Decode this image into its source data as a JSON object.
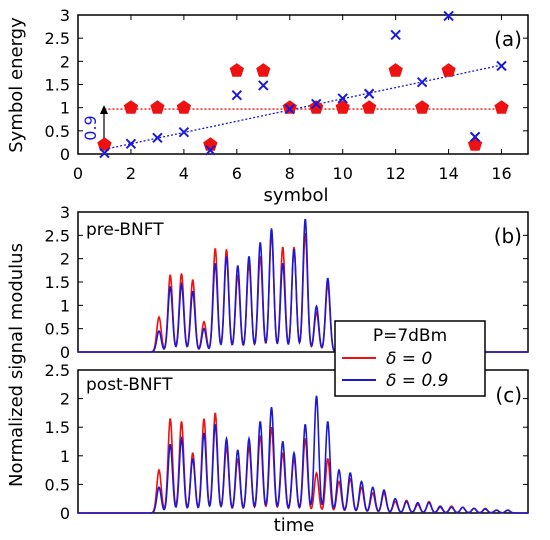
{
  "chart_data": [
    {
      "panel": "(a)",
      "type": "scatter",
      "xlabel": "symbol",
      "ylabel": "Symbol energy",
      "xlim": [
        0,
        17
      ],
      "ylim": [
        0,
        3
      ],
      "xticks": [
        "0",
        "2",
        "4",
        "6",
        "8",
        "10",
        "12",
        "14",
        "16"
      ],
      "yticks": [
        "0",
        "0.5",
        "1",
        "1.5",
        "2",
        "2.5",
        "3"
      ],
      "grid": false,
      "annotation": "0.9",
      "series": [
        {
          "marker": "pentagon",
          "color": "#ee1111",
          "x": [
            1,
            2,
            3,
            4,
            5,
            6,
            7,
            8,
            9,
            10,
            11,
            12,
            13,
            14,
            15,
            16
          ],
          "y": [
            0.2,
            1.0,
            1.0,
            1.0,
            0.2,
            1.8,
            1.8,
            1.0,
            1.0,
            1.0,
            1.0,
            1.8,
            1.0,
            1.8,
            0.2,
            1.0
          ]
        },
        {
          "marker": "cross",
          "color": "#1a1ad6",
          "x": [
            1,
            2,
            3,
            4,
            5,
            6,
            7,
            8,
            9,
            10,
            11,
            12,
            13,
            14,
            15,
            16
          ],
          "y": [
            0.02,
            0.22,
            0.35,
            0.47,
            0.08,
            1.27,
            1.48,
            0.97,
            1.08,
            1.2,
            1.3,
            2.57,
            1.55,
            2.98,
            0.37,
            1.9
          ]
        }
      ],
      "reference_lines": [
        {
          "style": "dotted",
          "color": "#ee1111",
          "x": [
            1,
            16
          ],
          "y": [
            0.97,
            0.97
          ]
        },
        {
          "style": "dotted",
          "color": "#1a1ad6",
          "x": [
            1,
            16
          ],
          "y": [
            0.1,
            1.92
          ]
        }
      ]
    },
    {
      "panel": "(b)",
      "type": "line",
      "inset_label": "pre-BNFT",
      "ylim": [
        0,
        3
      ],
      "yticks": [
        "0",
        "0.5",
        "1",
        "1.5",
        "2",
        "2.5",
        "3"
      ],
      "pulses": {
        "t": [
          0.18,
          0.205,
          0.23,
          0.255,
          0.28,
          0.305,
          0.33,
          0.355,
          0.38,
          0.405,
          0.43,
          0.455,
          0.48,
          0.505,
          0.53,
          0.555
        ],
        "width": 0.007,
        "series": [
          {
            "name": "δ = 0",
            "color": "#ee1111",
            "peaks": [
              0.75,
              1.65,
              1.68,
              1.55,
              0.65,
              2.22,
              2.2,
              1.65,
              1.9,
              2.05,
              2.55,
              2.25,
              2.25,
              2.55,
              0.85,
              1.45
            ]
          },
          {
            "name": "δ = 0.9",
            "color": "#1a1ad6",
            "peaks": [
              0.45,
              1.4,
              1.45,
              1.3,
              0.5,
              1.9,
              2.05,
              1.85,
              2.05,
              2.35,
              2.65,
              1.9,
              2.2,
              2.85,
              0.98,
              1.58
            ]
          }
        ]
      }
    },
    {
      "panel": "(c)",
      "type": "line",
      "inset_label": "post-BNFT",
      "xlabel": "time",
      "ylim": [
        0,
        2.5
      ],
      "yticks": [
        "0",
        "0.5",
        "1",
        "1.5",
        "2",
        "2.5"
      ],
      "pulses": {
        "t": [
          0.18,
          0.205,
          0.23,
          0.255,
          0.28,
          0.305,
          0.33,
          0.355,
          0.38,
          0.405,
          0.43,
          0.455,
          0.48,
          0.505,
          0.53,
          0.555,
          0.58,
          0.605,
          0.63,
          0.655,
          0.68,
          0.705,
          0.73,
          0.755,
          0.78,
          0.805,
          0.83,
          0.855,
          0.88,
          0.905,
          0.93,
          0.955
        ],
        "width": 0.007,
        "series": [
          {
            "name": "δ = 0",
            "color": "#ee1111",
            "peaks": [
              0.75,
              1.65,
              1.6,
              1.05,
              1.65,
              1.75,
              1.15,
              0.95,
              1.15,
              1.35,
              1.5,
              1.05,
              0.95,
              1.3,
              0.7,
              0.95,
              0.55,
              0.6,
              0.45,
              0.35,
              0.35,
              0.2,
              0.22,
              0.15,
              0.2,
              0.1,
              0.12,
              0.1,
              0.08,
              0.08,
              0.05,
              0.05
            ]
          },
          {
            "name": "δ = 0.9",
            "color": "#1a1ad6",
            "peaks": [
              0.45,
              1.2,
              1.3,
              0.95,
              1.4,
              1.55,
              1.3,
              1.1,
              1.3,
              1.6,
              1.85,
              1.25,
              1.05,
              1.55,
              2.05,
              1.6,
              0.75,
              0.7,
              0.55,
              0.45,
              0.4,
              0.25,
              0.2,
              0.18,
              0.18,
              0.12,
              0.1,
              0.1,
              0.08,
              0.07,
              0.05,
              0.05
            ]
          }
        ]
      }
    }
  ],
  "shared": {
    "ylabel": "Normalized signal modulus",
    "legend": {
      "title": "P=7dBm",
      "entries": [
        "δ = 0",
        "δ = 0.9"
      ]
    }
  }
}
